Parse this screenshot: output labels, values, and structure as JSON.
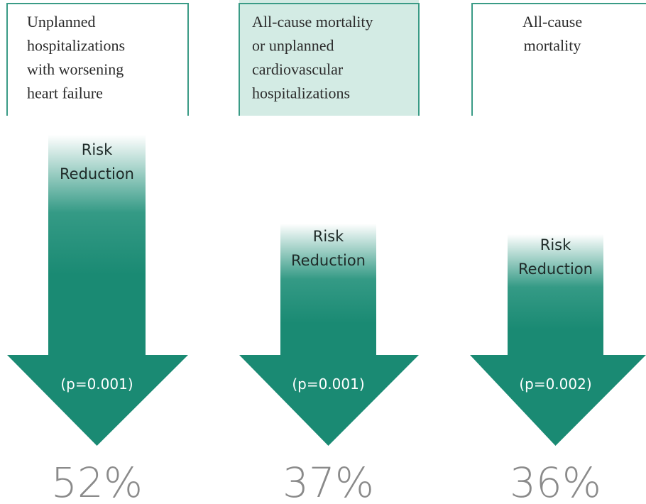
{
  "panels": [
    {
      "label": [
        "Unplanned",
        "hospitalizations",
        "with worsening",
        "heart failure"
      ],
      "arrow_text": [
        "Risk",
        "Reduction"
      ],
      "p_value": "(p=0.001)",
      "reduction": "52%"
    },
    {
      "label": [
        "All-cause mortality",
        "or unplanned",
        "cardiovascular",
        "hospitalizations"
      ],
      "arrow_text": [
        "Risk",
        "Reduction"
      ],
      "p_value": "(p=0.001)",
      "reduction": "37%"
    },
    {
      "label": [
        "All-cause",
        "mortality"
      ],
      "arrow_text": [
        "Risk",
        "Reduction"
      ],
      "p_value": "(p=0.002)",
      "reduction": "36%"
    }
  ]
}
